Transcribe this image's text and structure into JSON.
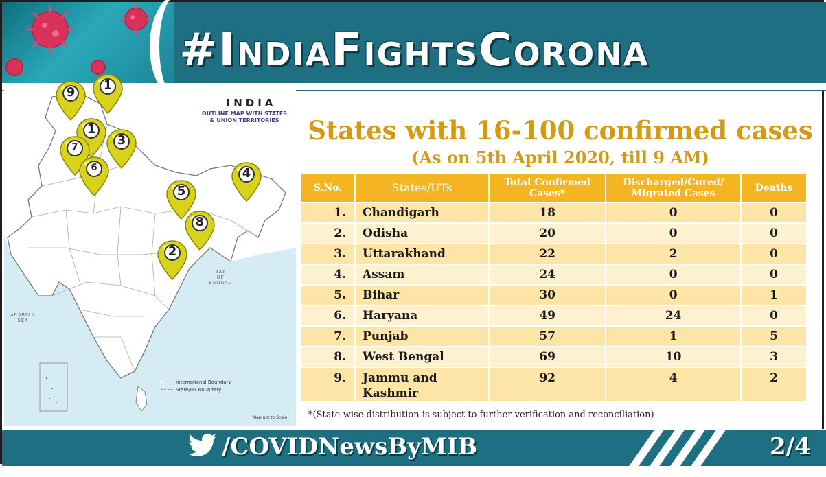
{
  "header": {
    "hashtag": "#IndiaFightsCorona"
  },
  "map": {
    "title": "INDIA",
    "subtitle_line1": "OUTLINE MAP WITH STATES",
    "subtitle_line2": "& UNION TERRITORIES",
    "bay_label_1": "BAY",
    "bay_label_2": "OF",
    "bay_label_3": "BENGAL",
    "sea_label_1": "ARABIAN",
    "sea_label_2": "SEA",
    "legend_international": "International Boundary",
    "legend_state": "State/UT Boundary",
    "scale_note": "Map not to Scale",
    "pins": [
      "9",
      "1",
      "1",
      "3",
      "7",
      "6",
      "4",
      "5",
      "8",
      "2"
    ]
  },
  "content": {
    "title": "States with 16-100 confirmed cases",
    "subtitle": "(As on 5th April 2020, till 9 AM)"
  },
  "table": {
    "headers": {
      "sno": "S.No.",
      "state": "States/UTs",
      "confirmed_1": "Total Confirmed",
      "confirmed_2": "Cases*",
      "discharged_1": "Discharged/Cured/",
      "discharged_2": "Migrated Cases",
      "deaths": "Deaths"
    },
    "rows": [
      {
        "sno": "1.",
        "state": "Chandigarh",
        "state2": "",
        "confirmed": "18",
        "discharged": "0",
        "deaths": "0"
      },
      {
        "sno": "2.",
        "state": "Odisha",
        "state2": "",
        "confirmed": "20",
        "discharged": "0",
        "deaths": "0"
      },
      {
        "sno": "3.",
        "state": "Uttarakhand",
        "state2": "",
        "confirmed": "22",
        "discharged": "2",
        "deaths": "0"
      },
      {
        "sno": "4.",
        "state": "Assam",
        "state2": "",
        "confirmed": "24",
        "discharged": "0",
        "deaths": "0"
      },
      {
        "sno": "5.",
        "state": "Bihar",
        "state2": "",
        "confirmed": "30",
        "discharged": "0",
        "deaths": "1"
      },
      {
        "sno": "6.",
        "state": "Haryana",
        "state2": "",
        "confirmed": "49",
        "discharged": "24",
        "deaths": "0"
      },
      {
        "sno": "7.",
        "state": "Punjab",
        "state2": "",
        "confirmed": "57",
        "discharged": "1",
        "deaths": "5"
      },
      {
        "sno": "8.",
        "state": "West Bengal",
        "state2": "",
        "confirmed": "69",
        "discharged": "10",
        "deaths": "3"
      },
      {
        "sno": "9.",
        "state": "Jammu and",
        "state2": "Kashmir",
        "confirmed": "92",
        "discharged": "4",
        "deaths": "2"
      }
    ]
  },
  "footnote": "*(State-wise distribution is subject to further verification and reconciliation)",
  "footer": {
    "handle": "/COVIDNewsByMIB",
    "page": "2/4"
  },
  "colors": {
    "teal": "#1f6f82",
    "gold": "#d39a16",
    "header_orange": "#f5b523",
    "row_light": "#fef1cf",
    "row_dark": "#fde5a8"
  }
}
